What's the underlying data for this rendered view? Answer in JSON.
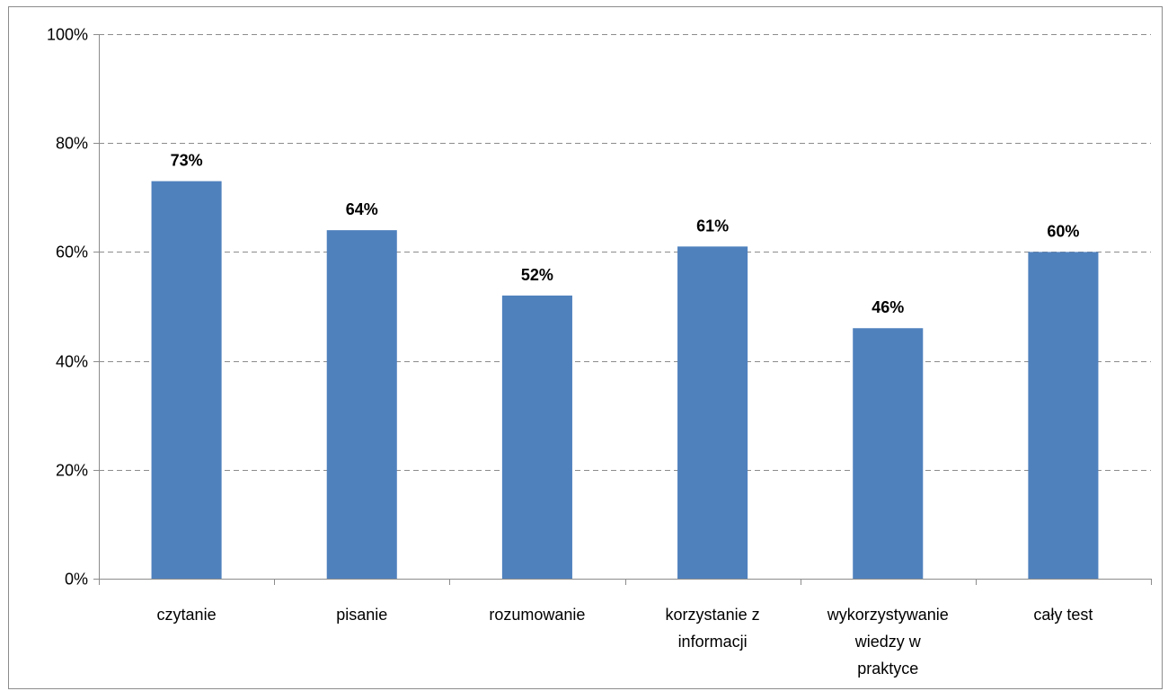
{
  "chart_data": {
    "type": "bar",
    "categories": [
      [
        "czytanie"
      ],
      [
        "pisanie"
      ],
      [
        "rozumowanie"
      ],
      [
        "korzystanie z",
        "informacji"
      ],
      [
        "wykorzystywanie",
        "wiedzy w",
        "praktyce"
      ],
      [
        "cały test"
      ]
    ],
    "values": [
      73,
      64,
      52,
      61,
      46,
      60
    ],
    "data_labels": [
      "73%",
      "64%",
      "52%",
      "61%",
      "46%",
      "60%"
    ],
    "y_ticks": [
      0,
      20,
      40,
      60,
      80,
      100
    ],
    "y_tick_labels": [
      "0%",
      "20%",
      "40%",
      "60%",
      "80%",
      "100%"
    ],
    "ylim": [
      0,
      100
    ],
    "title": "",
    "xlabel": "",
    "ylabel": "",
    "grid": true,
    "grid_style": "dashed",
    "legend": "none",
    "colors": {
      "bar": "#4f81bd",
      "grid": "#8c8c8c",
      "axis": "#8c8c8c",
      "text": "#000000"
    }
  }
}
